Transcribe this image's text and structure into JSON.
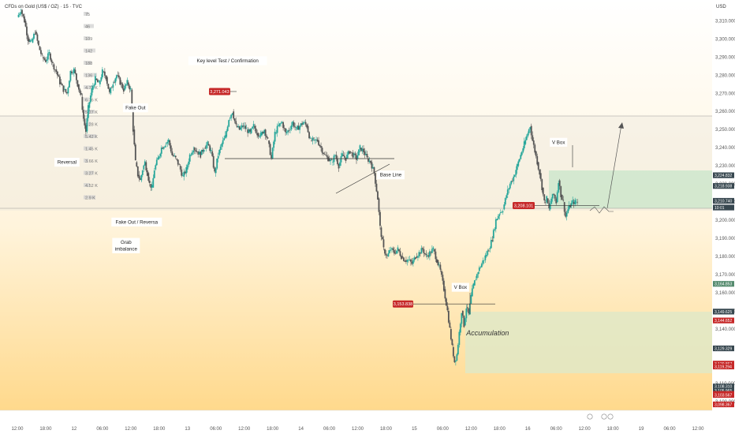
{
  "header": {
    "symbol": "CFDs on Gold (US$ / OZ) · 15 · TVC",
    "currency": "USD"
  },
  "colors": {
    "bull": "#26a69a",
    "bear": "#555555",
    "line": "#333333",
    "box": "#c8e6c9",
    "tag_red": "#c62828",
    "tag_dark": "#37474f",
    "tag_green": "#558b6e"
  },
  "chart_data": {
    "type": "candlestick",
    "ylim": [
      3096,
      3318
    ],
    "y_ticks": [
      3100,
      3110,
      3140,
      3150,
      3160,
      3170,
      3180,
      3190,
      3200,
      3210,
      3220,
      3230,
      3240,
      3250,
      3260,
      3270,
      3280,
      3290,
      3300,
      3310
    ],
    "y_tick_labels": [
      "3,100.000",
      "3,110.000",
      "3,140.000",
      "3,150.000",
      "3,160.000",
      "3,170.000",
      "3,180.000",
      "3,190.000",
      "3,200.000",
      "3,210.000",
      "3,220.000",
      "3,230.000",
      "3,240.000",
      "3,250.000",
      "3,260.000",
      "3,270.000",
      "3,280.000",
      "3,290.000",
      "3,300.000",
      "3,310.000"
    ],
    "x_ticks": [
      {
        "label": "12:00",
        "t": 0
      },
      {
        "label": "18:00",
        "t": 24
      },
      {
        "label": "12",
        "t": 48
      },
      {
        "label": "06:00",
        "t": 72
      },
      {
        "label": "12:00",
        "t": 96
      },
      {
        "label": "18:00",
        "t": 120
      },
      {
        "label": "13",
        "t": 144
      },
      {
        "label": "06:00",
        "t": 168
      },
      {
        "label": "12:00",
        "t": 192
      },
      {
        "label": "18:00",
        "t": 216
      },
      {
        "label": "14",
        "t": 240
      },
      {
        "label": "06:00",
        "t": 264
      },
      {
        "label": "12:00",
        "t": 288
      },
      {
        "label": "18:00",
        "t": 312
      },
      {
        "label": "15",
        "t": 336
      },
      {
        "label": "06:00",
        "t": 360
      },
      {
        "label": "12:00",
        "t": 384
      },
      {
        "label": "18:00",
        "t": 408
      },
      {
        "label": "16",
        "t": 432
      },
      {
        "label": "06:00",
        "t": 456
      },
      {
        "label": "12:00",
        "t": 480
      },
      {
        "label": "18:00",
        "t": 504
      },
      {
        "label": "19",
        "t": 528
      },
      {
        "label": "06:00",
        "t": 552
      },
      {
        "label": "12:00",
        "t": 576
      }
    ],
    "price_path": [
      [
        0,
        3312
      ],
      [
        3,
        3316
      ],
      [
        6,
        3310
      ],
      [
        9,
        3300
      ],
      [
        12,
        3298
      ],
      [
        15,
        3304
      ],
      [
        18,
        3296
      ],
      [
        21,
        3290
      ],
      [
        24,
        3288
      ],
      [
        27,
        3292
      ],
      [
        30,
        3286
      ],
      [
        33,
        3282
      ],
      [
        36,
        3276
      ],
      [
        39,
        3272
      ],
      [
        42,
        3270
      ],
      [
        45,
        3282
      ],
      [
        48,
        3283
      ],
      [
        51,
        3275
      ],
      [
        54,
        3268
      ],
      [
        56,
        3256
      ],
      [
        58,
        3249
      ],
      [
        60,
        3262
      ],
      [
        63,
        3272
      ],
      [
        66,
        3278
      ],
      [
        69,
        3275
      ],
      [
        72,
        3282
      ],
      [
        75,
        3279
      ],
      [
        78,
        3270
      ],
      [
        81,
        3276
      ],
      [
        84,
        3280
      ],
      [
        87,
        3276
      ],
      [
        90,
        3272
      ],
      [
        93,
        3276
      ],
      [
        96,
        3272
      ],
      [
        98,
        3250
      ],
      [
        100,
        3232
      ],
      [
        102,
        3225
      ],
      [
        104,
        3222
      ],
      [
        106,
        3228
      ],
      [
        108,
        3232
      ],
      [
        110,
        3226
      ],
      [
        112,
        3220
      ],
      [
        114,
        3218
      ],
      [
        116,
        3228
      ],
      [
        119,
        3234
      ],
      [
        122,
        3240
      ],
      [
        125,
        3242
      ],
      [
        128,
        3244
      ],
      [
        131,
        3236
      ],
      [
        134,
        3234
      ],
      [
        137,
        3230
      ],
      [
        140,
        3224
      ],
      [
        143,
        3228
      ],
      [
        146,
        3236
      ],
      [
        149,
        3240
      ],
      [
        152,
        3238
      ],
      [
        155,
        3236
      ],
      [
        158,
        3240
      ],
      [
        161,
        3242
      ],
      [
        164,
        3238
      ],
      [
        167,
        3226
      ],
      [
        170,
        3236
      ],
      [
        173,
        3242
      ],
      [
        176,
        3246
      ],
      [
        179,
        3256
      ],
      [
        182,
        3260
      ],
      [
        185,
        3252
      ],
      [
        188,
        3250
      ],
      [
        191,
        3252
      ],
      [
        194,
        3250
      ],
      [
        197,
        3248
      ],
      [
        200,
        3252
      ],
      [
        203,
        3248
      ],
      [
        206,
        3247
      ],
      [
        209,
        3250
      ],
      [
        212,
        3244
      ],
      [
        215,
        3234
      ],
      [
        218,
        3248
      ],
      [
        221,
        3252
      ],
      [
        224,
        3254
      ],
      [
        227,
        3248
      ],
      [
        230,
        3250
      ],
      [
        233,
        3254
      ],
      [
        236,
        3250
      ],
      [
        239,
        3252
      ],
      [
        242,
        3254
      ],
      [
        245,
        3252
      ],
      [
        248,
        3244
      ],
      [
        251,
        3244
      ],
      [
        254,
        3244
      ],
      [
        257,
        3240
      ],
      [
        260,
        3236
      ],
      [
        263,
        3234
      ],
      [
        266,
        3232
      ],
      [
        269,
        3236
      ],
      [
        272,
        3230
      ],
      [
        275,
        3236
      ],
      [
        278,
        3234
      ],
      [
        281,
        3238
      ],
      [
        284,
        3236
      ],
      [
        287,
        3234
      ],
      [
        290,
        3240
      ],
      [
        293,
        3238
      ],
      [
        296,
        3234
      ],
      [
        299,
        3232
      ],
      [
        302,
        3226
      ],
      [
        305,
        3212
      ],
      [
        307,
        3196
      ],
      [
        310,
        3184
      ],
      [
        313,
        3180
      ],
      [
        316,
        3184
      ],
      [
        319,
        3182
      ],
      [
        322,
        3184
      ],
      [
        325,
        3180
      ],
      [
        328,
        3178
      ],
      [
        331,
        3178
      ],
      [
        334,
        3176
      ],
      [
        337,
        3180
      ],
      [
        340,
        3182
      ],
      [
        343,
        3184
      ],
      [
        346,
        3180
      ],
      [
        349,
        3182
      ],
      [
        352,
        3184
      ],
      [
        355,
        3178
      ],
      [
        358,
        3172
      ],
      [
        361,
        3162
      ],
      [
        364,
        3150
      ],
      [
        366,
        3140
      ],
      [
        368,
        3130
      ],
      [
        370,
        3122
      ],
      [
        372,
        3126
      ],
      [
        374,
        3138
      ],
      [
        376,
        3150
      ],
      [
        378,
        3142
      ],
      [
        380,
        3152
      ],
      [
        382,
        3148
      ],
      [
        384,
        3158
      ],
      [
        386,
        3164
      ],
      [
        388,
        3168
      ],
      [
        390,
        3172
      ],
      [
        393,
        3176
      ],
      [
        396,
        3180
      ],
      [
        399,
        3184
      ],
      [
        402,
        3190
      ],
      [
        405,
        3200
      ],
      [
        408,
        3204
      ],
      [
        411,
        3206
      ],
      [
        414,
        3214
      ],
      [
        417,
        3220
      ],
      [
        420,
        3224
      ],
      [
        423,
        3230
      ],
      [
        426,
        3236
      ],
      [
        429,
        3242
      ],
      [
        432,
        3248
      ],
      [
        434,
        3252
      ],
      [
        436,
        3244
      ],
      [
        438,
        3238
      ],
      [
        440,
        3232
      ],
      [
        442,
        3226
      ],
      [
        444,
        3218
      ],
      [
        446,
        3210
      ],
      [
        448,
        3212
      ],
      [
        450,
        3206
      ],
      [
        452,
        3212
      ],
      [
        454,
        3214
      ],
      [
        456,
        3210
      ],
      [
        458,
        3222
      ],
      [
        460,
        3214
      ],
      [
        462,
        3210
      ],
      [
        464,
        3202
      ],
      [
        466,
        3206
      ],
      [
        468,
        3208
      ],
      [
        470,
        3210
      ],
      [
        472,
        3210
      ],
      [
        474,
        3210
      ]
    ],
    "levels": [
      {
        "label": "3,271.043",
        "price": 3271.0
      },
      {
        "label": "3,208.101",
        "price": 3208.1
      },
      {
        "label": "3,153.838",
        "price": 3153.8
      }
    ],
    "axis_tags": [
      {
        "label": "3,224.832",
        "price": 3224.8,
        "kind": "dark"
      },
      {
        "label": "3,218.938",
        "price": 3218.9,
        "kind": "dark"
      },
      {
        "label": "3,210.740",
        "price": 3210.7,
        "kind": "dark"
      },
      {
        "label": "10:01",
        "price": 3207.0,
        "kind": "dark"
      },
      {
        "label": "3,164.853",
        "price": 3164.9,
        "kind": "green"
      },
      {
        "label": "3,149.625",
        "price": 3149.6,
        "kind": "dark"
      },
      {
        "label": "3,144.652",
        "price": 3144.7,
        "kind": "red"
      },
      {
        "label": "3,129.329",
        "price": 3129.3,
        "kind": "dark"
      },
      {
        "label": "3,120.867",
        "price": 3120.9,
        "kind": "red"
      },
      {
        "label": "3,119.294",
        "price": 3119.3,
        "kind": "red"
      },
      {
        "label": "3,108.310",
        "price": 3108.3,
        "kind": "dark"
      },
      {
        "label": "3,105.965",
        "price": 3106.0,
        "kind": "dark"
      },
      {
        "label": "3,104.191",
        "price": 3104.2,
        "kind": "red"
      },
      {
        "label": "3,103.567",
        "price": 3103.6,
        "kind": "red"
      },
      {
        "label": "3,098.367",
        "price": 3098.4,
        "kind": "red"
      }
    ],
    "annotations": [
      {
        "text": "Reversal",
        "t": 42,
        "price": 3232
      },
      {
        "text": "Fake Out",
        "t": 100,
        "price": 3262
      },
      {
        "text": "Key level Test / Confirmation",
        "t": 178,
        "price": 3288
      },
      {
        "text": "Fake Out / Reversa",
        "t": 101,
        "price": 3199
      },
      {
        "text": "Grab imbalance",
        "t": 92,
        "price": 3186
      },
      {
        "text": "Base Line",
        "t": 316,
        "price": 3225
      },
      {
        "text": "V Box",
        "t": 458,
        "price": 3243
      },
      {
        "text": "V Box",
        "t": 375,
        "price": 3163
      },
      {
        "text": "Accumulation",
        "t": 398,
        "price": 3138
      }
    ],
    "volume_profile_labels": [
      "75",
      "46",
      "109",
      "142",
      "188",
      "136",
      "4.71 K",
      "6.36 K",
      "5.27 K",
      "4.28 K",
      "5.42 K",
      "1.45 K",
      "3.66 K",
      "3.27 K",
      "4.52 K",
      "2.9 K"
    ]
  }
}
